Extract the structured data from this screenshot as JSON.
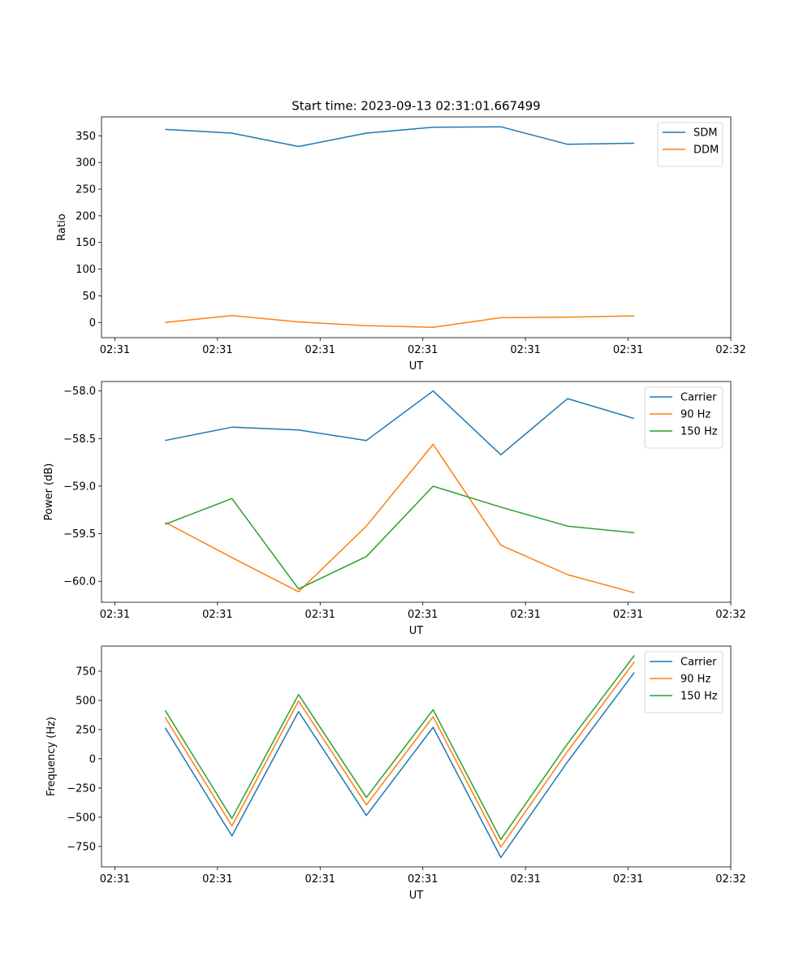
{
  "figure": {
    "title": "Start time: 2023-09-13 02:31:01.667499"
  },
  "chart_data": [
    {
      "type": "line",
      "xlabel": "UT",
      "ylabel": "Ratio",
      "x_ticks": [
        "02:31",
        "02:31",
        "02:31",
        "02:31",
        "02:31",
        "02:31",
        "02:32"
      ],
      "x_tick_values": [
        0,
        1,
        2,
        3,
        4,
        5,
        6
      ],
      "xlim": [
        -0.13,
        6.0
      ],
      "x": [
        0.49,
        1.14,
        1.79,
        2.45,
        3.1,
        3.76,
        4.41,
        5.06
      ],
      "y_ticks": [
        0,
        50,
        100,
        150,
        200,
        250,
        300,
        350
      ],
      "ylim": [
        -28.5,
        385.5
      ],
      "legend_position": "top-right",
      "series": [
        {
          "name": "SDM",
          "color": "#1f77b4",
          "values": [
            362,
            355,
            330,
            355,
            366,
            367,
            334,
            336
          ]
        },
        {
          "name": "DDM",
          "color": "#ff7f0e",
          "values": [
            0,
            13,
            1,
            -6,
            -9,
            9,
            10,
            12.5
          ]
        }
      ]
    },
    {
      "type": "line",
      "xlabel": "UT",
      "ylabel": "Power (dB)",
      "x_ticks": [
        "02:31",
        "02:31",
        "02:31",
        "02:31",
        "02:31",
        "02:31",
        "02:32"
      ],
      "x_tick_values": [
        0,
        1,
        2,
        3,
        4,
        5,
        6
      ],
      "xlim": [
        -0.13,
        6.0
      ],
      "x": [
        0.49,
        1.14,
        1.79,
        2.45,
        3.1,
        3.76,
        4.41,
        5.06
      ],
      "y_ticks": [
        -58.0,
        -58.5,
        -59.0,
        -59.5,
        -60.0
      ],
      "y_tick_labels": [
        "−58.0",
        "−58.5",
        "−59.0",
        "−59.5",
        "−60.0"
      ],
      "ylim": [
        -60.22,
        -57.9
      ],
      "legend_position": "top-right",
      "series": [
        {
          "name": "Carrier",
          "color": "#1f77b4",
          "values": [
            -58.52,
            -58.38,
            -58.41,
            -58.52,
            -58.0,
            -58.67,
            -58.08,
            -58.29
          ]
        },
        {
          "name": "90 Hz",
          "color": "#ff7f0e",
          "values": [
            -59.38,
            -59.75,
            -60.11,
            -59.42,
            -58.56,
            -59.62,
            -59.93,
            -60.12
          ]
        },
        {
          "name": "150 Hz",
          "color": "#2ca02c",
          "values": [
            -59.4,
            -59.13,
            -60.08,
            -59.74,
            -59.0,
            -59.22,
            -59.42,
            -59.49
          ]
        }
      ]
    },
    {
      "type": "line",
      "xlabel": "UT",
      "ylabel": "Frequency (Hz)",
      "x_ticks": [
        "02:31",
        "02:31",
        "02:31",
        "02:31",
        "02:31",
        "02:31",
        "02:32"
      ],
      "x_tick_values": [
        0,
        1,
        2,
        3,
        4,
        5,
        6
      ],
      "xlim": [
        -0.13,
        6.0
      ],
      "x": [
        0.49,
        1.14,
        1.79,
        2.45,
        3.1,
        3.76,
        4.41,
        5.06
      ],
      "y_ticks": [
        750,
        500,
        250,
        0,
        -250,
        -500,
        -750
      ],
      "y_tick_labels": [
        "750",
        "500",
        "250",
        "0",
        "−250",
        "−500",
        "−750"
      ],
      "ylim": [
        -925,
        965
      ],
      "legend_position": "top-right",
      "series": [
        {
          "name": "Carrier",
          "color": "#1f77b4",
          "values": [
            265,
            -660,
            405,
            -485,
            270,
            -845,
            -25,
            740
          ]
        },
        {
          "name": "90 Hz",
          "color": "#ff7f0e",
          "values": [
            355,
            -575,
            495,
            -395,
            360,
            -755,
            65,
            830
          ]
        },
        {
          "name": "150 Hz",
          "color": "#2ca02c",
          "values": [
            415,
            -510,
            550,
            -330,
            420,
            -690,
            130,
            885
          ]
        }
      ]
    }
  ]
}
